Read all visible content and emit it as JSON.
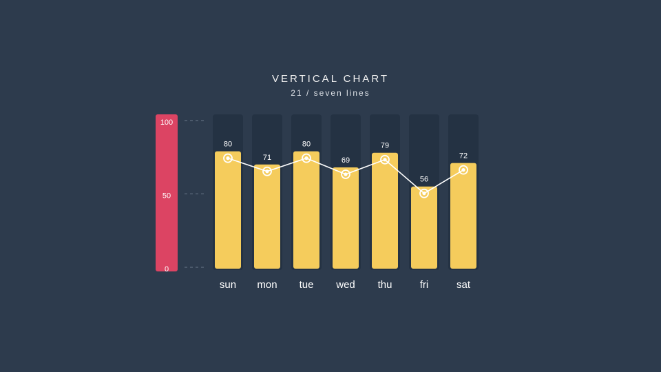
{
  "header": {
    "title": "VERTICAL CHART",
    "subtitle": "21 / seven lines"
  },
  "colors": {
    "background": "#2d3b4d",
    "track": "#243243",
    "bar": "#f5cc5c",
    "scale_bar": "#dc4463",
    "line": "#ffffff",
    "text": "#ffffff"
  },
  "chart_data": {
    "type": "bar",
    "categories": [
      "sun",
      "mon",
      "tue",
      "wed",
      "thu",
      "fri",
      "sat"
    ],
    "values": [
      80,
      71,
      80,
      69,
      79,
      56,
      72
    ],
    "ylim": [
      0,
      100
    ],
    "yticks": [
      "0",
      "50",
      "100"
    ],
    "line_overlay": true,
    "grid": false,
    "title": "VERTICAL CHART",
    "subtitle": "21 / seven lines"
  }
}
